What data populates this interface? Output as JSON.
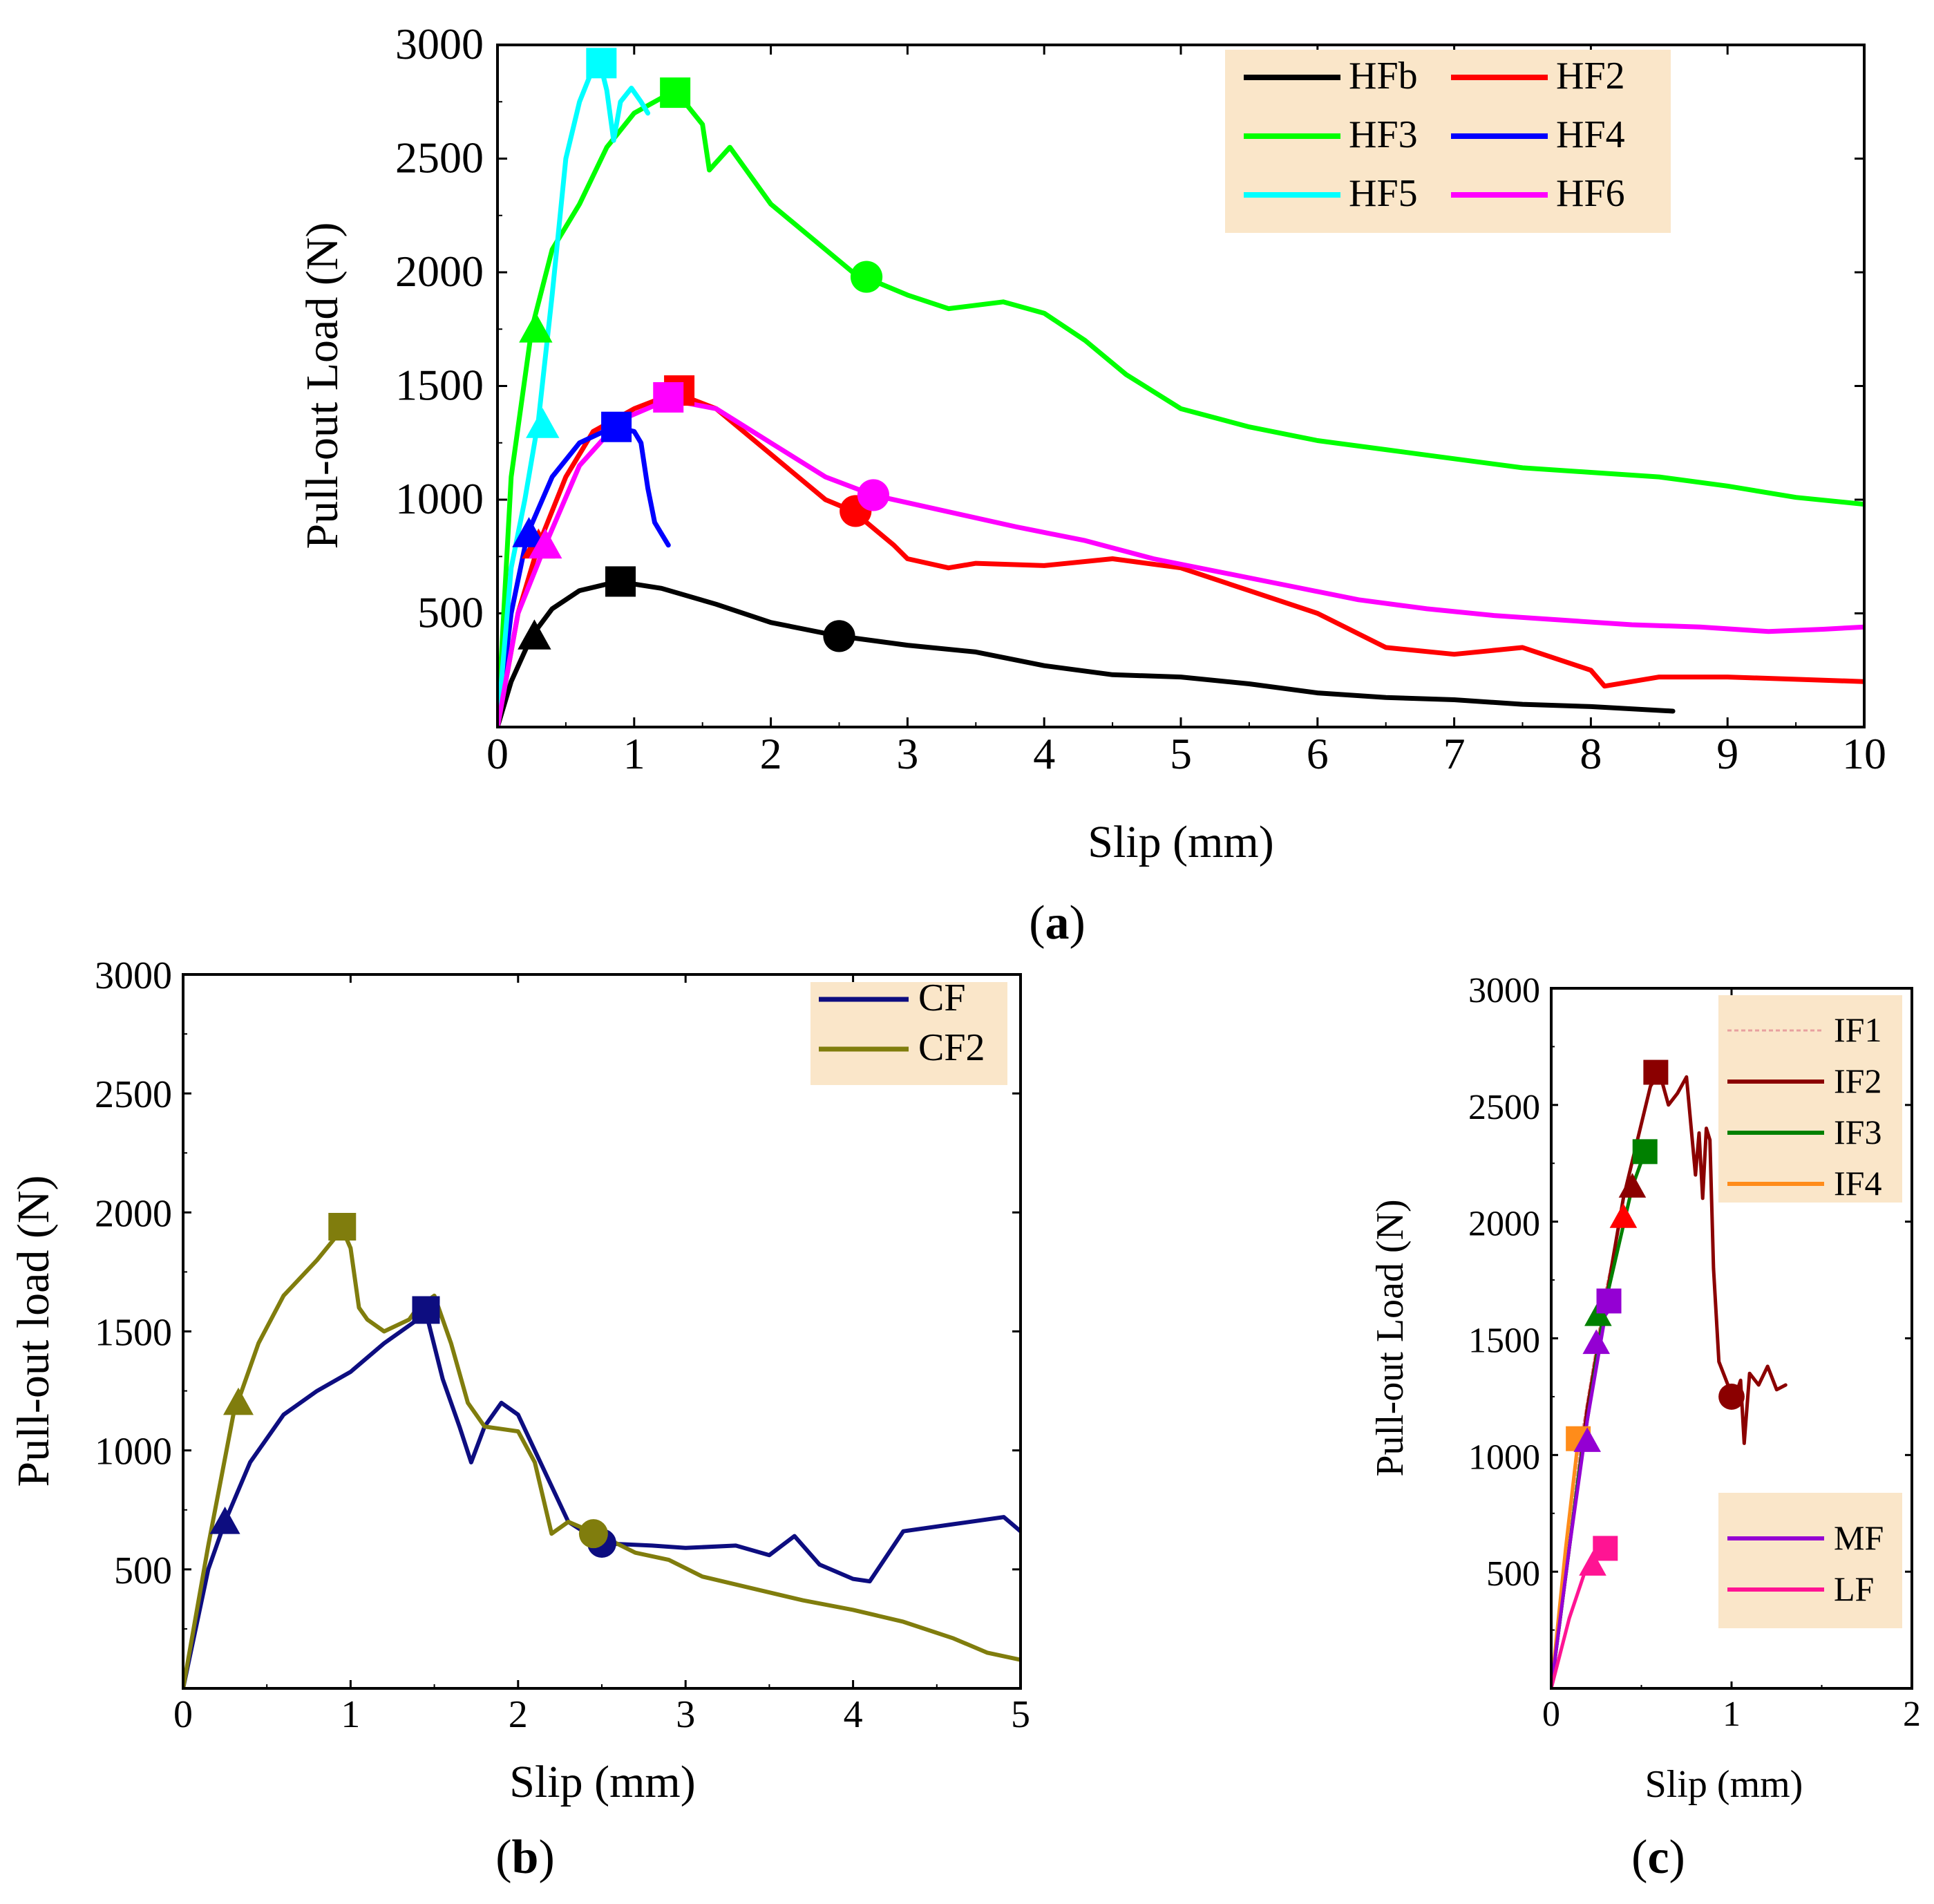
{
  "chart_data": [
    {
      "type": "line",
      "panel": "(a)",
      "caption_letter": "a",
      "xlabel": "Slip (mm)",
      "ylabel": "Pull-out Load (N)",
      "xlim": [
        0,
        10
      ],
      "ylim": [
        0,
        3000
      ],
      "xticks": [
        "0",
        "1",
        "2",
        "3",
        "4",
        "5",
        "6",
        "7",
        "8",
        "9",
        "10"
      ],
      "yticks": [
        "500",
        "1000",
        "1500",
        "2000",
        "2500",
        "3000"
      ],
      "legend": "top-right",
      "series": [
        {
          "name": "HFb",
          "color": "#000000",
          "x": [
            0,
            0.1,
            0.25,
            0.4,
            0.6,
            0.88,
            1.2,
            1.6,
            2.0,
            2.5,
            3.0,
            3.5,
            4.0,
            4.5,
            5.0,
            5.5,
            6.0,
            6.5,
            7.0,
            7.5,
            8.0,
            8.6
          ],
          "y": [
            0,
            200,
            400,
            520,
            600,
            640,
            610,
            540,
            460,
            400,
            360,
            330,
            270,
            230,
            220,
            190,
            150,
            130,
            120,
            100,
            90,
            70
          ],
          "markers": [
            {
              "shape": "triangle",
              "x": 0.27,
              "y": 400
            },
            {
              "shape": "square",
              "x": 0.9,
              "y": 640
            },
            {
              "shape": "circle",
              "x": 2.5,
              "y": 400
            }
          ]
        },
        {
          "name": "HF2",
          "color": "#ff0000",
          "x": [
            0,
            0.15,
            0.3,
            0.5,
            0.7,
            1.0,
            1.3,
            1.6,
            2.0,
            2.4,
            2.6,
            2.9,
            3.0,
            3.3,
            3.5,
            4.0,
            4.5,
            5.0,
            5.5,
            6.0,
            6.5,
            7.0,
            7.5,
            8.0,
            8.1,
            8.5,
            9.0,
            9.5,
            10.0
          ],
          "y": [
            0,
            500,
            800,
            1100,
            1300,
            1400,
            1470,
            1400,
            1200,
            1000,
            950,
            800,
            740,
            700,
            720,
            710,
            740,
            700,
            600,
            500,
            350,
            320,
            350,
            250,
            180,
            220,
            220,
            210,
            200
          ],
          "markers": [
            {
              "shape": "triangle",
              "x": 0.3,
              "y": 800
            },
            {
              "shape": "square",
              "x": 1.33,
              "y": 1480
            },
            {
              "shape": "circle",
              "x": 2.62,
              "y": 950
            }
          ]
        },
        {
          "name": "HF3",
          "color": "#00ff00",
          "x": [
            0,
            0.1,
            0.25,
            0.4,
            0.6,
            0.8,
            1.0,
            1.3,
            1.5,
            1.55,
            1.7,
            2.0,
            2.3,
            2.6,
            3.0,
            3.3,
            3.7,
            4.0,
            4.3,
            4.6,
            5.0,
            5.5,
            6.0,
            6.5,
            7.0,
            7.5,
            8.0,
            8.5,
            9.0,
            9.5,
            10.0
          ],
          "y": [
            0,
            1100,
            1750,
            2100,
            2300,
            2550,
            2700,
            2800,
            2650,
            2450,
            2550,
            2300,
            2150,
            2000,
            1900,
            1840,
            1870,
            1820,
            1700,
            1550,
            1400,
            1320,
            1260,
            1220,
            1180,
            1140,
            1120,
            1100,
            1060,
            1010,
            980
          ],
          "markers": [
            {
              "shape": "triangle",
              "x": 0.28,
              "y": 1750
            },
            {
              "shape": "square",
              "x": 1.3,
              "y": 2790
            },
            {
              "shape": "circle",
              "x": 2.7,
              "y": 1980
            }
          ]
        },
        {
          "name": "HF4",
          "color": "#0000ff",
          "x": [
            0,
            0.1,
            0.22,
            0.4,
            0.6,
            0.85,
            1.0,
            1.05,
            1.1,
            1.15,
            1.2,
            1.25
          ],
          "y": [
            0,
            500,
            850,
            1100,
            1250,
            1320,
            1300,
            1250,
            1050,
            900,
            850,
            800
          ],
          "markers": [
            {
              "shape": "triangle",
              "x": 0.23,
              "y": 850
            },
            {
              "shape": "square",
              "x": 0.87,
              "y": 1320
            }
          ]
        },
        {
          "name": "HF5",
          "color": "#00ffff",
          "x": [
            0,
            0.1,
            0.2,
            0.3,
            0.4,
            0.5,
            0.6,
            0.7,
            0.75,
            0.8,
            0.85,
            0.9,
            0.98,
            1.05,
            1.1
          ],
          "y": [
            0,
            700,
            1000,
            1350,
            1900,
            2500,
            2750,
            2900,
            2920,
            2800,
            2580,
            2750,
            2810,
            2750,
            2700
          ],
          "markers": [
            {
              "shape": "triangle",
              "x": 0.33,
              "y": 1330
            },
            {
              "shape": "square",
              "x": 0.76,
              "y": 2920
            }
          ]
        },
        {
          "name": "HF6",
          "color": "#ff00ff",
          "x": [
            0,
            0.15,
            0.35,
            0.6,
            0.9,
            1.25,
            1.6,
            2.0,
            2.4,
            2.75,
            3.2,
            3.8,
            4.3,
            4.8,
            5.3,
            5.8,
            6.3,
            6.8,
            7.3,
            7.8,
            8.3,
            8.8,
            9.3,
            9.7,
            10.0
          ],
          "y": [
            0,
            500,
            800,
            1150,
            1350,
            1440,
            1400,
            1250,
            1100,
            1020,
            960,
            880,
            820,
            740,
            680,
            620,
            560,
            520,
            490,
            470,
            450,
            440,
            420,
            430,
            440
          ],
          "markers": [
            {
              "shape": "triangle",
              "x": 0.35,
              "y": 800
            },
            {
              "shape": "square",
              "x": 1.25,
              "y": 1450
            },
            {
              "shape": "circle",
              "x": 2.75,
              "y": 1020
            }
          ]
        }
      ]
    },
    {
      "type": "line",
      "panel": "(b)",
      "caption_letter": "b",
      "xlabel": "Slip (mm)",
      "ylabel": "Pull-out load (N)",
      "xlim": [
        0,
        5
      ],
      "ylim": [
        0,
        3000
      ],
      "xticks": [
        "0",
        "1",
        "2",
        "3",
        "4",
        "5"
      ],
      "yticks": [
        "500",
        "1000",
        "1500",
        "2000",
        "2500",
        "3000"
      ],
      "legend": "top-right",
      "series": [
        {
          "name": "CF",
          "color": "#0d0d80",
          "x": [
            0,
            0.15,
            0.25,
            0.4,
            0.6,
            0.8,
            1.0,
            1.2,
            1.4,
            1.45,
            1.55,
            1.65,
            1.72,
            1.8,
            1.9,
            2.0,
            2.1,
            2.3,
            2.5,
            2.8,
            3.0,
            3.3,
            3.5,
            3.65,
            3.8,
            4.0,
            4.1,
            4.3,
            4.6,
            4.9,
            5.0
          ],
          "y": [
            0,
            500,
            700,
            950,
            1150,
            1250,
            1330,
            1450,
            1550,
            1580,
            1300,
            1100,
            950,
            1100,
            1200,
            1150,
            1000,
            700,
            610,
            600,
            590,
            600,
            560,
            640,
            520,
            460,
            450,
            660,
            690,
            720,
            660
          ],
          "markers": [
            {
              "shape": "triangle",
              "x": 0.25,
              "y": 700
            },
            {
              "shape": "square",
              "x": 1.45,
              "y": 1590
            },
            {
              "shape": "circle",
              "x": 2.5,
              "y": 610
            }
          ]
        },
        {
          "name": "CF2",
          "color": "#807d0d",
          "x": [
            0,
            0.15,
            0.3,
            0.45,
            0.6,
            0.8,
            0.95,
            1.0,
            1.05,
            1.1,
            1.2,
            1.35,
            1.4,
            1.5,
            1.6,
            1.7,
            1.8,
            2.0,
            2.1,
            2.2,
            2.3,
            2.5,
            2.7,
            2.9,
            3.1,
            3.4,
            3.7,
            4.0,
            4.3,
            4.6,
            4.8,
            5.0
          ],
          "y": [
            0,
            600,
            1150,
            1450,
            1650,
            1800,
            1930,
            1850,
            1600,
            1550,
            1500,
            1550,
            1600,
            1650,
            1450,
            1200,
            1100,
            1080,
            950,
            650,
            700,
            640,
            570,
            540,
            470,
            420,
            370,
            330,
            280,
            210,
            150,
            120
          ],
          "markers": [
            {
              "shape": "triangle",
              "x": 0.33,
              "y": 1200
            },
            {
              "shape": "square",
              "x": 0.95,
              "y": 1940
            },
            {
              "shape": "circle",
              "x": 2.45,
              "y": 650
            }
          ]
        }
      ]
    },
    {
      "type": "line",
      "panel": "(c)",
      "caption_letter": "c",
      "xlabel": "Slip (mm)",
      "ylabel": "Pull-out Load (N)",
      "xlim": [
        0,
        2
      ],
      "ylim": [
        0,
        3000
      ],
      "xticks": [
        "0",
        "1",
        "2"
      ],
      "yticks": [
        "500",
        "1000",
        "1500",
        "2000",
        "2500",
        "3000"
      ],
      "legend": "top-right",
      "legend2": "bottom-right",
      "series": [
        {
          "name": "IF1",
          "color": "#e8a0a0",
          "dash": true,
          "x": [
            0,
            0.15,
            0.3,
            0.4
          ],
          "y": [
            0,
            1000,
            1700,
            2050
          ],
          "markers": []
        },
        {
          "name": "IF2",
          "color": "#8b0000",
          "x": [
            0,
            0.2,
            0.4,
            0.55,
            0.6,
            0.65,
            0.7,
            0.75,
            0.8,
            0.82,
            0.84,
            0.86,
            0.88,
            0.9,
            0.93,
            0.98,
            1.02,
            1.05,
            1.07,
            1.1,
            1.15,
            1.2,
            1.25,
            1.3
          ],
          "y": [
            0,
            1200,
            2100,
            2580,
            2640,
            2500,
            2550,
            2620,
            2200,
            2380,
            2100,
            2400,
            2350,
            1800,
            1400,
            1300,
            1250,
            1320,
            1050,
            1350,
            1300,
            1380,
            1280,
            1300
          ],
          "markers": [
            {
              "shape": "triangle",
              "x": 0.45,
              "y": 2150
            },
            {
              "shape": "square",
              "x": 0.58,
              "y": 2640
            },
            {
              "shape": "circle",
              "x": 1.0,
              "y": 1250
            }
          ]
        },
        {
          "name": "IF3",
          "color": "#008000",
          "x": [
            0,
            0.15,
            0.3,
            0.45,
            0.52
          ],
          "y": [
            0,
            900,
            1650,
            2150,
            2300
          ],
          "markers": [
            {
              "shape": "triangle",
              "x": 0.26,
              "y": 1600
            },
            {
              "shape": "square",
              "x": 0.52,
              "y": 2300
            }
          ]
        },
        {
          "name": "IF4",
          "color": "#ff8c1a",
          "x": [
            0,
            0.08,
            0.15
          ],
          "y": [
            0,
            600,
            1070
          ],
          "markers": [
            {
              "shape": "square",
              "x": 0.15,
              "y": 1070
            }
          ]
        },
        {
          "name": "MF",
          "color": "#9400d3",
          "x": [
            0,
            0.1,
            0.2,
            0.3,
            0.35
          ],
          "y": [
            0,
            600,
            1150,
            1600,
            1650
          ],
          "markers": [
            {
              "shape": "triangle",
              "x": 0.25,
              "y": 1480
            },
            {
              "shape": "square",
              "x": 0.32,
              "y": 1660
            },
            {
              "shape": "triangle",
              "x": 0.2,
              "y": 1060
            }
          ]
        },
        {
          "name": "LF",
          "color": "#ff1493",
          "x": [
            0,
            0.1,
            0.2,
            0.3
          ],
          "y": [
            0,
            300,
            530,
            600
          ],
          "markers": [
            {
              "shape": "triangle",
              "x": 0.23,
              "y": 530
            },
            {
              "shape": "square",
              "x": 0.3,
              "y": 600
            },
            {
              "shape": "triangle",
              "x": 0.4,
              "y": 2020,
              "color": "#ff0000"
            }
          ]
        }
      ]
    }
  ]
}
